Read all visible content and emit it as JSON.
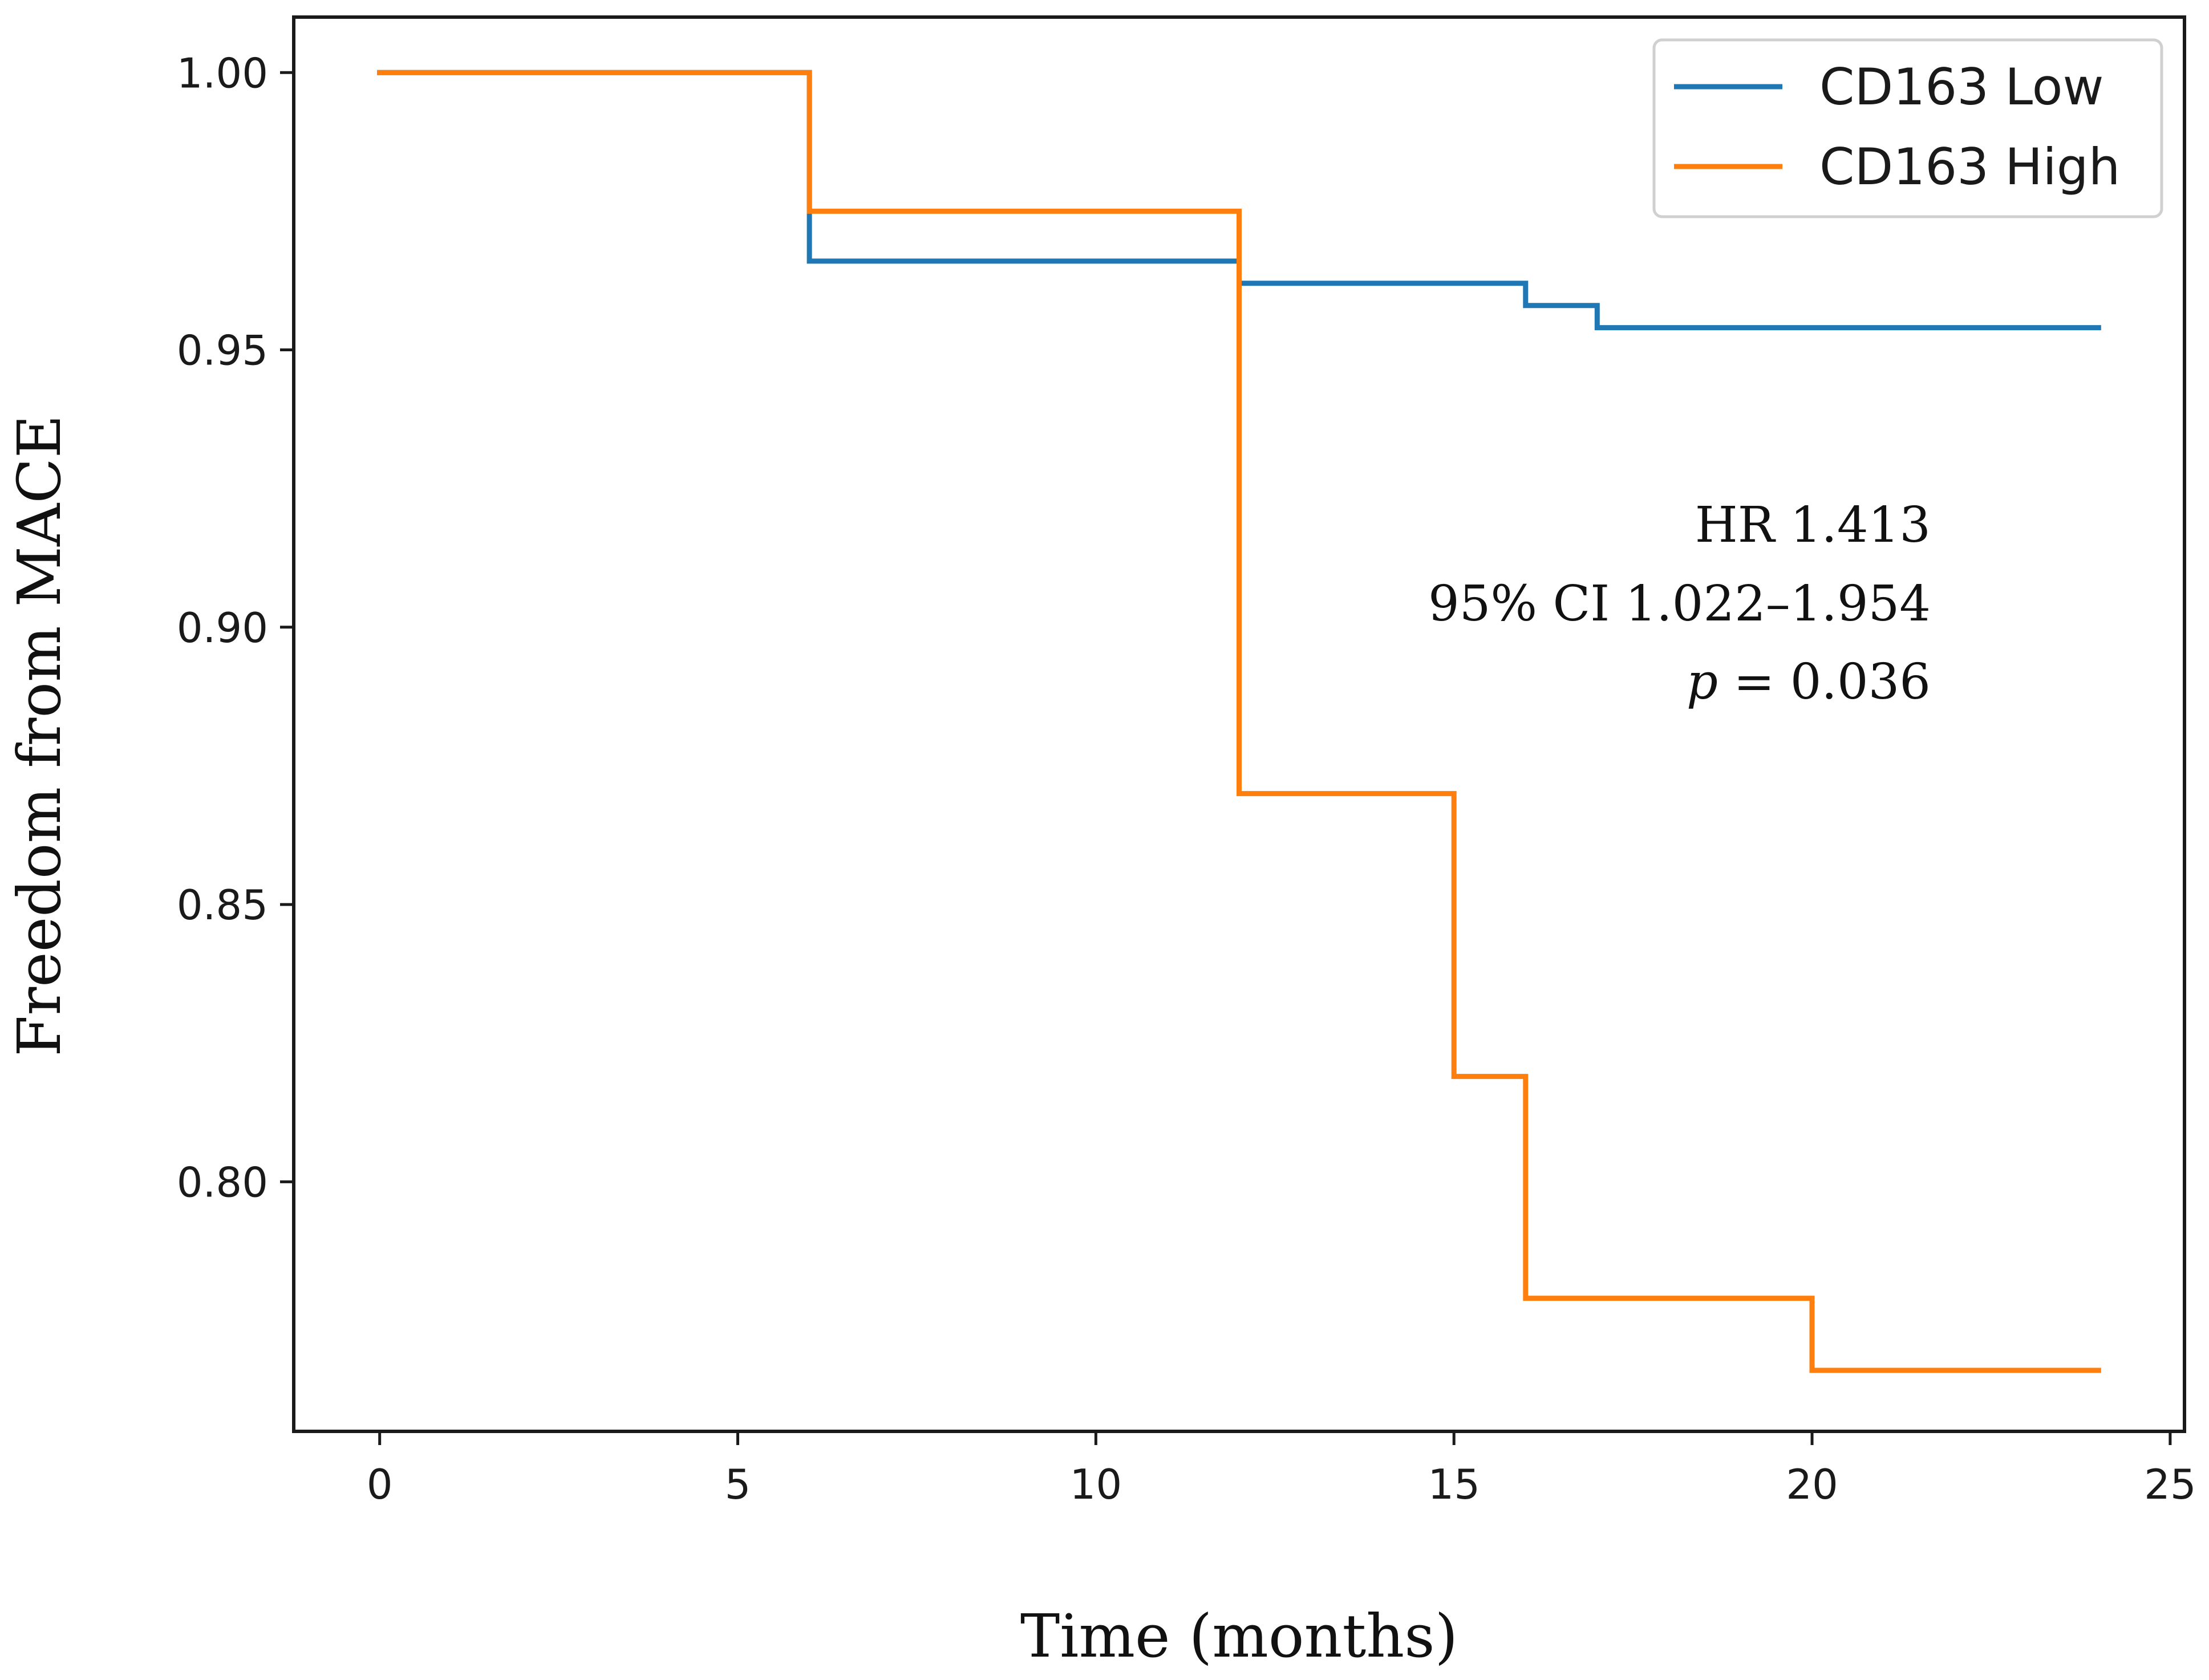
{
  "chart_data": {
    "type": "line",
    "subtype": "kaplan-meier-step",
    "title": "",
    "xlabel": "Time (months)",
    "ylabel": "Freedom from MACE",
    "xlim": [
      -1.2,
      25.2
    ],
    "ylim": [
      0.755,
      1.01
    ],
    "xticks": [
      0,
      5,
      10,
      15,
      20,
      25
    ],
    "xtick_labels": [
      "0",
      "5",
      "10",
      "15",
      "20",
      "25"
    ],
    "yticks": [
      0.8,
      0.85,
      0.9,
      0.95,
      1.0
    ],
    "ytick_labels": [
      "0.80",
      "0.85",
      "0.90",
      "0.95",
      "1.00"
    ],
    "grid": false,
    "legend_position": "top-right",
    "series": [
      {
        "name": "CD163 Low",
        "color": "#1f77b4",
        "x": [
          0,
          6,
          6,
          12,
          12,
          16,
          16,
          17,
          17,
          24
        ],
        "y": [
          1.0,
          1.0,
          0.966,
          0.966,
          0.962,
          0.962,
          0.958,
          0.958,
          0.954,
          0.954
        ]
      },
      {
        "name": "CD163 High",
        "color": "#ff7f0e",
        "x": [
          0,
          6,
          6,
          12,
          12,
          15,
          15,
          16,
          16,
          20,
          20,
          24
        ],
        "y": [
          1.0,
          1.0,
          0.975,
          0.975,
          0.87,
          0.87,
          0.819,
          0.819,
          0.779,
          0.779,
          0.766,
          0.766
        ]
      }
    ],
    "annotations": {
      "hr": "HR 1.413",
      "ci": "95% CI 1.022–1.954",
      "p_symbol": "p",
      "p_value": " = 0.036"
    }
  }
}
